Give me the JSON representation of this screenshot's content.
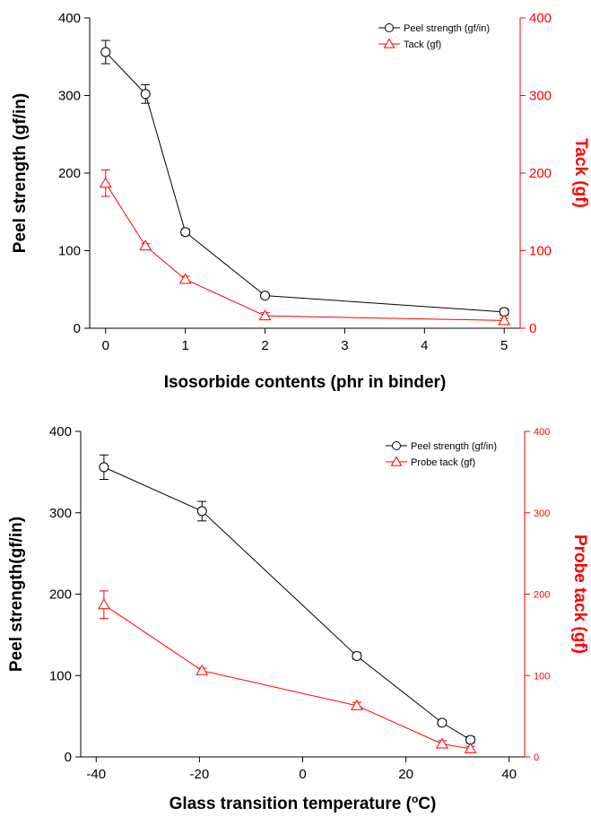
{
  "colors": {
    "series1": "#000000",
    "series2": "#ff0000"
  },
  "chart_data": [
    {
      "type": "line",
      "title": "",
      "xlabel": "Isosorbide contents (phr in binder)",
      "ylabel": "Peel strength (gf/in)",
      "y2label": "Tack (gf)",
      "xlim": [
        -0.2,
        5.2
      ],
      "ylim": [
        0,
        400
      ],
      "y2lim": [
        0,
        400
      ],
      "xticks": [
        "0",
        "1",
        "2",
        "3",
        "4",
        "5"
      ],
      "yticks": [
        "0",
        "100",
        "200",
        "300",
        "400"
      ],
      "y2ticks": [
        "0",
        "100",
        "200",
        "300",
        "400"
      ],
      "legend_position": "top-right",
      "grid": false,
      "series": [
        {
          "name": "Peel strength (gf/in)",
          "axis": "left",
          "marker": "circle",
          "color": "#000000",
          "x": [
            0,
            0.5,
            1,
            2,
            5
          ],
          "y": [
            356,
            302,
            124,
            42,
            21
          ],
          "err": [
            15,
            12,
            4,
            3,
            4
          ]
        },
        {
          "name": "Tack (gf)",
          "axis": "right",
          "marker": "triangle",
          "color": "#ff0000",
          "x": [
            0,
            0.5,
            1,
            2,
            5
          ],
          "y": [
            187,
            106,
            63,
            16,
            10
          ],
          "err": [
            17,
            3,
            4,
            4,
            3
          ]
        }
      ]
    },
    {
      "type": "line",
      "title": "",
      "xlabel": "Glass transition temperature (",
      "xlabel_suffix_sup": "o",
      "xlabel_suffix": "C)",
      "ylabel": "Peel strength(gf/in)",
      "y2label": "Probe tack (gf)",
      "xlim": [
        -43,
        43
      ],
      "ylim": [
        0,
        400
      ],
      "y2lim": [
        0,
        400
      ],
      "xticks": [
        "-40",
        "-20",
        "0",
        "20",
        "40"
      ],
      "yticks": [
        "0",
        "100",
        "200",
        "300",
        "400"
      ],
      "y2ticks": [
        "0",
        "100",
        "200",
        "300",
        "400"
      ],
      "legend_position": "top-right",
      "grid": false,
      "series": [
        {
          "name": "Peel strength (gf/in)",
          "axis": "left",
          "marker": "circle",
          "color": "#000000",
          "x": [
            -38.5,
            -19.5,
            10.5,
            27,
            32.5
          ],
          "y": [
            356,
            302,
            124,
            42,
            21
          ],
          "err": [
            15,
            12,
            4,
            3,
            4
          ]
        },
        {
          "name": "Probe tack (gf)",
          "axis": "right",
          "marker": "triangle",
          "color": "#ff0000",
          "x": [
            -38.5,
            -19.5,
            10.5,
            27,
            32.5
          ],
          "y": [
            187,
            106,
            63,
            16,
            10
          ],
          "err": [
            17,
            3,
            4,
            4,
            3
          ]
        }
      ]
    }
  ]
}
